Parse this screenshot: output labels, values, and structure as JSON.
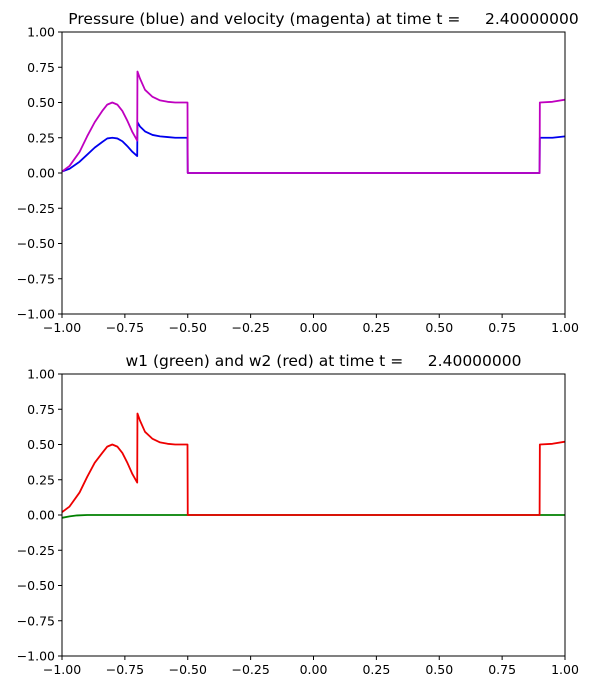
{
  "chart_data": [
    {
      "type": "line",
      "title": "Pressure (blue) and velocity (magenta) at time t =     2.40000000",
      "xlabel": "",
      "ylabel": "",
      "xlim": [
        -1.0,
        1.0
      ],
      "ylim": [
        -1.0,
        1.0
      ],
      "xticks": [
        -1.0,
        -0.75,
        -0.5,
        -0.25,
        0.0,
        0.25,
        0.5,
        0.75,
        1.0
      ],
      "xtick_labels": [
        "−1.00",
        "−0.75",
        "−0.50",
        "−0.25",
        "0.00",
        "0.25",
        "0.50",
        "0.75",
        "1.00"
      ],
      "yticks": [
        -1.0,
        -0.75,
        -0.5,
        -0.25,
        0.0,
        0.25,
        0.5,
        0.75,
        1.0
      ],
      "ytick_labels": [
        "−1.00",
        "−0.75",
        "−0.50",
        "−0.25",
        "0.00",
        "0.25",
        "0.50",
        "0.75",
        "1.00"
      ],
      "grid": false,
      "series": [
        {
          "color": "#0000ee",
          "x": [
            -1.0,
            -0.97,
            -0.93,
            -0.9,
            -0.87,
            -0.84,
            -0.82,
            -0.8,
            -0.78,
            -0.76,
            -0.74,
            -0.72,
            -0.701,
            -0.7,
            -0.69,
            -0.67,
            -0.64,
            -0.61,
            -0.58,
            -0.55,
            -0.52,
            -0.501,
            -0.5,
            0.0,
            0.5,
            0.899,
            0.9,
            0.95,
            1.0
          ],
          "y": [
            0.01,
            0.03,
            0.08,
            0.13,
            0.18,
            0.22,
            0.245,
            0.25,
            0.245,
            0.225,
            0.19,
            0.15,
            0.12,
            0.36,
            0.33,
            0.295,
            0.27,
            0.26,
            0.255,
            0.25,
            0.25,
            0.25,
            0.0,
            0.0,
            0.0,
            0.0,
            0.25,
            0.25,
            0.26
          ]
        },
        {
          "color": "#bf00bf",
          "x": [
            -1.0,
            -0.97,
            -0.93,
            -0.9,
            -0.87,
            -0.84,
            -0.82,
            -0.8,
            -0.78,
            -0.76,
            -0.74,
            -0.72,
            -0.701,
            -0.7,
            -0.69,
            -0.67,
            -0.64,
            -0.61,
            -0.58,
            -0.55,
            -0.52,
            -0.501,
            -0.5,
            0.0,
            0.5,
            0.899,
            0.9,
            0.95,
            1.0
          ],
          "y": [
            0.01,
            0.05,
            0.15,
            0.26,
            0.36,
            0.44,
            0.485,
            0.5,
            0.485,
            0.44,
            0.37,
            0.29,
            0.23,
            0.72,
            0.67,
            0.59,
            0.54,
            0.515,
            0.505,
            0.5,
            0.5,
            0.5,
            0.0,
            0.0,
            0.0,
            0.0,
            0.5,
            0.505,
            0.52
          ]
        }
      ]
    },
    {
      "type": "line",
      "title": "w1 (green) and w2 (red) at time t =     2.40000000",
      "xlabel": "",
      "ylabel": "",
      "xlim": [
        -1.0,
        1.0
      ],
      "ylim": [
        -1.0,
        1.0
      ],
      "xticks": [
        -1.0,
        -0.75,
        -0.5,
        -0.25,
        0.0,
        0.25,
        0.5,
        0.75,
        1.0
      ],
      "xtick_labels": [
        "−1.00",
        "−0.75",
        "−0.50",
        "−0.25",
        "0.00",
        "0.25",
        "0.50",
        "0.75",
        "1.00"
      ],
      "yticks": [
        -1.0,
        -0.75,
        -0.5,
        -0.25,
        0.0,
        0.25,
        0.5,
        0.75,
        1.0
      ],
      "ytick_labels": [
        "−1.00",
        "−0.75",
        "−0.50",
        "−0.25",
        "0.00",
        "0.25",
        "0.50",
        "0.75",
        "1.00"
      ],
      "grid": false,
      "series": [
        {
          "color": "#008000",
          "x": [
            -1.0,
            -0.97,
            -0.94,
            -0.9,
            -0.85,
            -0.8,
            0.0,
            0.5,
            1.0
          ],
          "y": [
            -0.02,
            -0.01,
            -0.003,
            0.0,
            0.0,
            0.0,
            0.0,
            0.0,
            0.0
          ]
        },
        {
          "color": "#ee0000",
          "x": [
            -1.0,
            -0.97,
            -0.93,
            -0.9,
            -0.87,
            -0.84,
            -0.82,
            -0.8,
            -0.78,
            -0.76,
            -0.74,
            -0.72,
            -0.701,
            -0.7,
            -0.69,
            -0.67,
            -0.64,
            -0.61,
            -0.58,
            -0.55,
            -0.52,
            -0.501,
            -0.5,
            0.0,
            0.5,
            0.899,
            0.9,
            0.95,
            1.0
          ],
          "y": [
            0.02,
            0.06,
            0.16,
            0.27,
            0.37,
            0.44,
            0.485,
            0.5,
            0.485,
            0.44,
            0.37,
            0.29,
            0.23,
            0.72,
            0.67,
            0.59,
            0.54,
            0.515,
            0.505,
            0.5,
            0.5,
            0.5,
            0.0,
            0.0,
            0.0,
            0.0,
            0.5,
            0.505,
            0.52
          ]
        }
      ]
    }
  ]
}
